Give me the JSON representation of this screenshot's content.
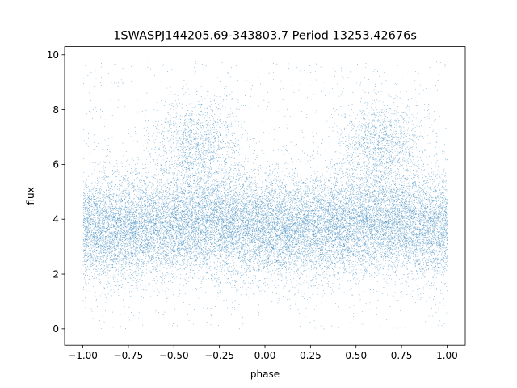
{
  "chart_data": {
    "type": "scatter",
    "title": "1SWASPJ144205.69-343803.7 Period 13253.42676s",
    "xlabel": "phase",
    "ylabel": "flux",
    "xlim": [
      -1.1,
      1.1
    ],
    "ylim": [
      -0.6,
      10.3
    ],
    "x_ticks": [
      -1.0,
      -0.75,
      -0.5,
      -0.25,
      0.0,
      0.25,
      0.5,
      0.75,
      1.0
    ],
    "x_tick_labels": [
      "−1.00",
      "−0.75",
      "−0.50",
      "−0.25",
      "0.00",
      "0.25",
      "0.50",
      "0.75",
      "1.00"
    ],
    "y_ticks": [
      0,
      2,
      4,
      6,
      8,
      10
    ],
    "y_tick_labels": [
      "0",
      "2",
      "4",
      "6",
      "8",
      "10"
    ],
    "grid": false,
    "series": [
      {
        "color": "#1f77b4",
        "x_range": [
          -1.0,
          1.0
        ],
        "y_range": [
          0.0,
          9.8
        ],
        "baseline_flux": 3.7,
        "bumps": [
          {
            "phase": -0.37,
            "flux": 7.0
          },
          {
            "phase": 0.63,
            "flux": 7.0
          }
        ]
      }
    ]
  }
}
